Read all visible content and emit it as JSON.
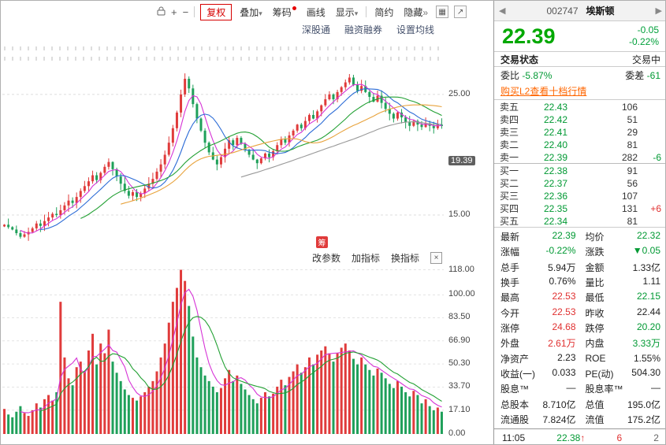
{
  "icons": {
    "prev": "◀",
    "next": "▶",
    "plus": "+",
    "minus": "−",
    "grid": "▦",
    "expand": "↗",
    "close": "×",
    "caret": "▾",
    "chev": "»",
    "up_arrow": "↑"
  },
  "toolbar": {
    "buttons": [
      {
        "label": "复权"
      },
      {
        "label": "叠加"
      },
      {
        "label": "筹码"
      },
      {
        "label": "画线"
      },
      {
        "label": "显示"
      },
      {
        "label": "简约"
      },
      {
        "label": "隐藏"
      }
    ],
    "links": [
      "深股通",
      "融资融券",
      "设置均线"
    ]
  },
  "chart": {
    "price_axis": [
      {
        "value": 25,
        "label": "25.00"
      },
      {
        "value": 15,
        "label": "15.00"
      }
    ],
    "price_tag": {
      "value": 19.39,
      "label": "19.39"
    },
    "volume_axis": [
      {
        "value": 118,
        "label": "118.00"
      },
      {
        "value": 100,
        "label": "100.00"
      },
      {
        "value": 83.5,
        "label": "83.50"
      },
      {
        "value": 66.9,
        "label": "66.90"
      },
      {
        "value": 50.3,
        "label": "50.30"
      },
      {
        "value": 33.7,
        "label": "33.70"
      },
      {
        "value": 17.1,
        "label": "17.10"
      },
      {
        "value": 0,
        "label": "0.00"
      }
    ],
    "panel_links": [
      "改参数",
      "加指标",
      "换指标"
    ],
    "chip_badge": "筹"
  },
  "chart_data": {
    "type": "candlestick",
    "price_range": [
      12,
      29.5
    ],
    "volume_range": [
      0,
      120
    ],
    "ma_periods": [
      5,
      10,
      20,
      30,
      60
    ],
    "ma_colors": [
      "#d633d6",
      "#2b6bd6",
      "#22a033",
      "#e8a33d",
      "#999999"
    ],
    "volume_ma_periods": [
      5,
      10
    ],
    "volume_ma_colors": [
      "#d633d6",
      "#22a033"
    ],
    "up_color": "#e03b3b",
    "down_color": "#1fa05a",
    "closes": [
      14.2,
      14.0,
      13.8,
      13.5,
      13.2,
      13.4,
      13.6,
      13.9,
      14.3,
      14.1,
      14.5,
      14.8,
      15.1,
      15.0,
      15.4,
      15.8,
      16.2,
      16.0,
      16.5,
      17.0,
      17.4,
      17.8,
      18.3,
      17.9,
      18.5,
      19.0,
      19.4,
      18.8,
      18.2,
      17.6,
      17.0,
      16.6,
      16.9,
      16.5,
      16.8,
      17.2,
      17.6,
      18.0,
      18.6,
      19.2,
      20.0,
      21.0,
      22.2,
      23.5,
      25.0,
      26.3,
      25.5,
      24.2,
      23.0,
      22.0,
      21.0,
      20.2,
      19.6,
      19.2,
      19.8,
      20.5,
      21.2,
      20.8,
      21.4,
      20.9,
      20.4,
      20.0,
      19.6,
      19.3,
      19.7,
      20.1,
      19.8,
      20.3,
      20.8,
      21.3,
      21.0,
      21.6,
      22.0,
      22.5,
      22.2,
      22.8,
      23.3,
      23.0,
      23.6,
      24.1,
      24.6,
      25.0,
      24.6,
      25.2,
      25.6,
      26.0,
      26.4,
      25.8,
      25.3,
      25.7,
      25.2,
      24.8,
      24.4,
      24.9,
      24.3,
      23.8,
      23.4,
      23.0,
      23.5,
      23.1,
      22.7,
      22.4,
      22.8,
      22.5,
      22.3,
      22.6,
      22.4,
      22.2,
      22.5,
      22.39
    ],
    "volumes": [
      18,
      14,
      12,
      16,
      20,
      15,
      13,
      17,
      22,
      19,
      25,
      28,
      24,
      30,
      95,
      55,
      40,
      35,
      48,
      52,
      45,
      60,
      72,
      50,
      65,
      58,
      75,
      52,
      44,
      38,
      32,
      28,
      26,
      24,
      27,
      30,
      34,
      38,
      45,
      55,
      65,
      80,
      95,
      105,
      118,
      110,
      92,
      70,
      55,
      48,
      42,
      38,
      34,
      30,
      33,
      40,
      46,
      38,
      42,
      36,
      32,
      28,
      25,
      22,
      26,
      30,
      27,
      29,
      34,
      39,
      35,
      41,
      45,
      50,
      44,
      48,
      55,
      50,
      57,
      60,
      63,
      58,
      52,
      58,
      62,
      65,
      60,
      54,
      50,
      55,
      50,
      46,
      42,
      47,
      44,
      40,
      36,
      33,
      38,
      34,
      30,
      27,
      31,
      28,
      22,
      25,
      20,
      17,
      19,
      16
    ]
  },
  "quote": {
    "code": "002747",
    "name": "埃斯顿",
    "price": "22.39",
    "change": "-0.05",
    "change_pct": "-0.22%",
    "status_label": "交易状态",
    "status_value": "交易中",
    "weibi_label": "委比",
    "weibi_value": "-5.87%",
    "weicha_label": "委差",
    "weicha_value": "-61",
    "l2_link": "购买L2查看十档行情",
    "asks": [
      {
        "label": "卖五",
        "price": "22.43",
        "vol": "106",
        "delta": ""
      },
      {
        "label": "卖四",
        "price": "22.42",
        "vol": "51",
        "delta": ""
      },
      {
        "label": "卖三",
        "price": "22.41",
        "vol": "29",
        "delta": ""
      },
      {
        "label": "卖二",
        "price": "22.40",
        "vol": "81",
        "delta": ""
      },
      {
        "label": "卖一",
        "price": "22.39",
        "vol": "282",
        "delta": "-6",
        "delta_color": "green"
      }
    ],
    "bids": [
      {
        "label": "买一",
        "price": "22.38",
        "vol": "91",
        "delta": ""
      },
      {
        "label": "买二",
        "price": "22.37",
        "vol": "56",
        "delta": ""
      },
      {
        "label": "买三",
        "price": "22.36",
        "vol": "107",
        "delta": ""
      },
      {
        "label": "买四",
        "price": "22.35",
        "vol": "131",
        "delta": "+6",
        "delta_color": "red"
      },
      {
        "label": "买五",
        "price": "22.34",
        "vol": "81",
        "delta": ""
      }
    ],
    "stats": [
      {
        "l1": "最新",
        "v1": "22.39",
        "c1": "green",
        "l2": "均价",
        "v2": "22.32",
        "c2": "green"
      },
      {
        "l1": "涨幅",
        "v1": "-0.22%",
        "c1": "green",
        "l2": "涨跌",
        "v2": "▼0.05",
        "c2": "green"
      },
      {
        "l1": "总手",
        "v1": "5.94万",
        "c1": "dark",
        "l2": "金额",
        "v2": "1.33亿",
        "c2": "dark"
      },
      {
        "l1": "换手",
        "v1": "0.76%",
        "c1": "dark",
        "l2": "量比",
        "v2": "1.11",
        "c2": "dark"
      },
      {
        "l1": "最高",
        "v1": "22.53",
        "c1": "red",
        "l2": "最低",
        "v2": "22.15",
        "c2": "green"
      },
      {
        "l1": "今开",
        "v1": "22.53",
        "c1": "red",
        "l2": "昨收",
        "v2": "22.44",
        "c2": "dark"
      },
      {
        "l1": "涨停",
        "v1": "24.68",
        "c1": "red",
        "l2": "跌停",
        "v2": "20.20",
        "c2": "green"
      },
      {
        "l1": "外盘",
        "v1": "2.61万",
        "c1": "red",
        "l2": "内盘",
        "v2": "3.33万",
        "c2": "green"
      },
      {
        "l1": "净资产",
        "v1": "2.23",
        "c1": "dark",
        "l2": "ROE",
        "v2": "1.55%",
        "c2": "dark"
      },
      {
        "l1": "收益(一)",
        "v1": "0.033",
        "c1": "dark",
        "l2": "PE(动)",
        "v2": "504.30",
        "c2": "dark"
      },
      {
        "l1": "股息™",
        "v1": "—",
        "c1": "dark",
        "l2": "股息率™",
        "v2": "—",
        "c2": "dark"
      },
      {
        "l1": "总股本",
        "v1": "8.710亿",
        "c1": "dark",
        "l2": "总值",
        "v2": "195.0亿",
        "c2": "dark"
      },
      {
        "l1": "流通股",
        "v1": "7.824亿",
        "c1": "dark",
        "l2": "流值",
        "v2": "175.2亿",
        "c2": "dark"
      }
    ],
    "footer": {
      "time": "11:05",
      "price": "22.38",
      "vol": "6",
      "count": "2"
    }
  }
}
